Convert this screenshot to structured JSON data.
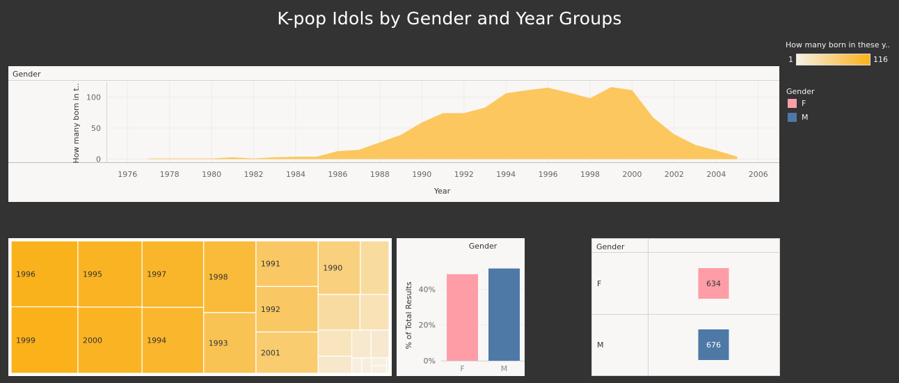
{
  "title": "K-pop Idols by Gender and Year Groups",
  "colors": {
    "background": "#333333",
    "area_fill": "#fcc75e",
    "female": "#ff9da7",
    "male": "#4e79a7",
    "ramp_low": "#f7f0e4",
    "ramp_high": "#fab11a"
  },
  "color_legend": {
    "title": "How many born in these y..",
    "min": "1",
    "max": "116"
  },
  "gender_legend": {
    "title": "Gender",
    "items": [
      {
        "label": "F",
        "color": "#ff9da7"
      },
      {
        "label": "M",
        "color": "#4e79a7"
      }
    ]
  },
  "chart_data": [
    {
      "type": "area",
      "header": "Gender",
      "xlabel": "Year",
      "ylabel": "How many born in t..",
      "xlim": [
        1975,
        2007
      ],
      "ylim": [
        -5,
        125
      ],
      "x_ticks": [
        1976,
        1978,
        1980,
        1982,
        1984,
        1986,
        1988,
        1990,
        1992,
        1994,
        1996,
        1998,
        2000,
        2002,
        2004,
        2006
      ],
      "y_ticks": [
        0,
        50,
        100
      ],
      "grid": true,
      "x": [
        1977,
        1978,
        1979,
        1980,
        1981,
        1982,
        1983,
        1984,
        1985,
        1986,
        1987,
        1988,
        1989,
        1990,
        1991,
        1992,
        1993,
        1994,
        1995,
        1996,
        1997,
        1998,
        1999,
        2000,
        2001,
        2002,
        2003,
        2004,
        2005
      ],
      "values": [
        1,
        1,
        1,
        1,
        3,
        1,
        3,
        4,
        4,
        13,
        15,
        27,
        39,
        59,
        74,
        74,
        83,
        106,
        111,
        115,
        107,
        98,
        116,
        111,
        67,
        40,
        23,
        14,
        4
      ]
    },
    {
      "type": "treemap",
      "cells": [
        {
          "label": "1996",
          "value": 115
        },
        {
          "label": "1999",
          "value": 116
        },
        {
          "label": "1995",
          "value": 111
        },
        {
          "label": "2000",
          "value": 111
        },
        {
          "label": "1997",
          "value": 107
        },
        {
          "label": "1994",
          "value": 106
        },
        {
          "label": "1998",
          "value": 98
        },
        {
          "label": "1993",
          "value": 83
        },
        {
          "label": "1991",
          "value": 74
        },
        {
          "label": "1992",
          "value": 74
        },
        {
          "label": "2001",
          "value": 67
        },
        {
          "label": "1990",
          "value": 59
        },
        {
          "label": "",
          "value": 40
        },
        {
          "label": "",
          "value": 39
        },
        {
          "label": "",
          "value": 27
        },
        {
          "label": "",
          "value": 23
        },
        {
          "label": "",
          "value": 15
        },
        {
          "label": "",
          "value": 14
        },
        {
          "label": "",
          "value": 13
        },
        {
          "label": "",
          "value": 4
        },
        {
          "label": "",
          "value": 4
        },
        {
          "label": "",
          "value": 3
        },
        {
          "label": "",
          "value": 3
        },
        {
          "label": "",
          "value": 1
        }
      ]
    },
    {
      "type": "bar",
      "header": "Gender",
      "ylabel": "% of Total Results",
      "categories": [
        "F",
        "M"
      ],
      "values": [
        48.4,
        51.6
      ],
      "y_ticks": [
        "0%",
        "20%",
        "40%"
      ],
      "ylim": [
        0,
        60
      ]
    },
    {
      "type": "table",
      "header": "Gender",
      "rows": [
        {
          "label": "F",
          "value": "634"
        },
        {
          "label": "M",
          "value": "676"
        }
      ]
    }
  ]
}
